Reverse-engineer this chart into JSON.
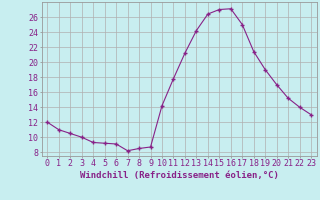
{
  "x": [
    0,
    1,
    2,
    3,
    4,
    5,
    6,
    7,
    8,
    9,
    10,
    11,
    12,
    13,
    14,
    15,
    16,
    17,
    18,
    19,
    20,
    21,
    22,
    23
  ],
  "y": [
    12,
    11,
    10.5,
    10,
    9.3,
    9.2,
    9.1,
    8.2,
    8.5,
    8.7,
    14.2,
    17.8,
    21.2,
    24.2,
    26.4,
    27.0,
    27.1,
    25.0,
    21.4,
    19.0,
    17.0,
    15.2,
    14.0,
    13.0
  ],
  "line_color": "#882288",
  "marker_color": "#882288",
  "bg_color": "#c8eef0",
  "grid_color": "#b0b0b0",
  "xlabel": "Windchill (Refroidissement éolien,°C)",
  "xlabel_fontsize": 6.5,
  "ylabel_ticks": [
    8,
    10,
    12,
    14,
    16,
    18,
    20,
    22,
    24,
    26
  ],
  "ylim": [
    7.5,
    28.0
  ],
  "xlim": [
    -0.5,
    23.5
  ],
  "tick_fontsize": 6.0
}
